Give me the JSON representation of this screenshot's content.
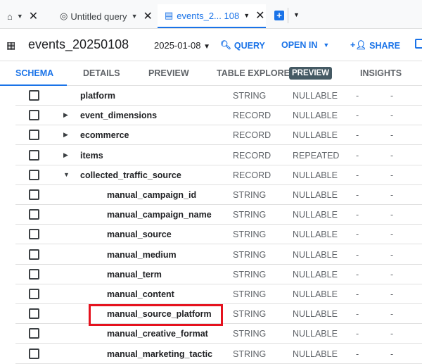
{
  "tabs": [
    {
      "label": "",
      "icon": "home-icon"
    },
    {
      "label": "Untitled query",
      "icon": "query-icon"
    },
    {
      "label": "events_2... 108",
      "icon": "table-icon",
      "active": true
    }
  ],
  "header": {
    "title": "events_20250108",
    "date": "2025-01-08",
    "query": "QUERY",
    "open_in": "OPEN IN",
    "share": "SHARE"
  },
  "subtabs": [
    "SCHEMA",
    "DETAILS",
    "PREVIEW",
    "TABLE EXPLORER",
    "INSIGHTS"
  ],
  "badge": "PREVIEW",
  "accent": "#1a73e8",
  "rows": [
    {
      "name": "platform",
      "type": "STRING",
      "mode": "NULLABLE",
      "c1": "-",
      "c2": "-"
    },
    {
      "name": "event_dimensions",
      "type": "RECORD",
      "mode": "NULLABLE",
      "c1": "-",
      "c2": "-"
    },
    {
      "name": "ecommerce",
      "type": "RECORD",
      "mode": "NULLABLE",
      "c1": "-",
      "c2": "-"
    },
    {
      "name": "items",
      "type": "RECORD",
      "mode": "REPEATED",
      "c1": "-",
      "c2": "-"
    },
    {
      "name": "collected_traffic_source",
      "type": "RECORD",
      "mode": "NULLABLE",
      "c1": "-",
      "c2": "-"
    },
    {
      "name": "manual_campaign_id",
      "type": "STRING",
      "mode": "NULLABLE",
      "c1": "-",
      "c2": "-"
    },
    {
      "name": "manual_campaign_name",
      "type": "STRING",
      "mode": "NULLABLE",
      "c1": "-",
      "c2": "-"
    },
    {
      "name": "manual_source",
      "type": "STRING",
      "mode": "NULLABLE",
      "c1": "-",
      "c2": "-"
    },
    {
      "name": "manual_medium",
      "type": "STRING",
      "mode": "NULLABLE",
      "c1": "-",
      "c2": "-"
    },
    {
      "name": "manual_term",
      "type": "STRING",
      "mode": "NULLABLE",
      "c1": "-",
      "c2": "-"
    },
    {
      "name": "manual_content",
      "type": "STRING",
      "mode": "NULLABLE",
      "c1": "-",
      "c2": "-"
    },
    {
      "name": "manual_source_platform",
      "type": "STRING",
      "mode": "NULLABLE",
      "c1": "-",
      "c2": "-"
    },
    {
      "name": "manual_creative_format",
      "type": "STRING",
      "mode": "NULLABLE",
      "c1": "-",
      "c2": "-"
    },
    {
      "name": "manual_marketing_tactic",
      "type": "STRING",
      "mode": "NULLABLE",
      "c1": "-",
      "c2": "-"
    }
  ]
}
